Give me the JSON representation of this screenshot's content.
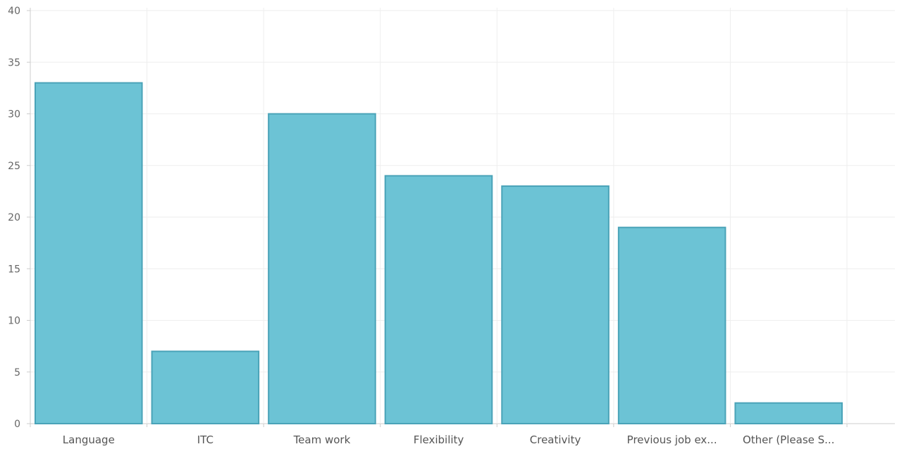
{
  "chart_data": {
    "type": "bar",
    "title": "",
    "xlabel": "",
    "ylabel": "",
    "categories": [
      "Language",
      "ITC",
      "Team work",
      "Flexibility",
      "Creativity",
      "Previous job ex...",
      "Other (Please S..."
    ],
    "values": [
      33,
      7,
      30,
      24,
      23,
      19,
      2
    ],
    "ylim": [
      0,
      40
    ],
    "yticks": [
      0,
      5,
      10,
      15,
      20,
      25,
      30,
      35,
      40
    ],
    "grid": true,
    "legend": "none",
    "colors": {
      "bar_fill": "#6cc3d5",
      "bar_stroke": "#4aa3b8",
      "grid": "#eeeeee",
      "axis": "#cccccc"
    }
  }
}
